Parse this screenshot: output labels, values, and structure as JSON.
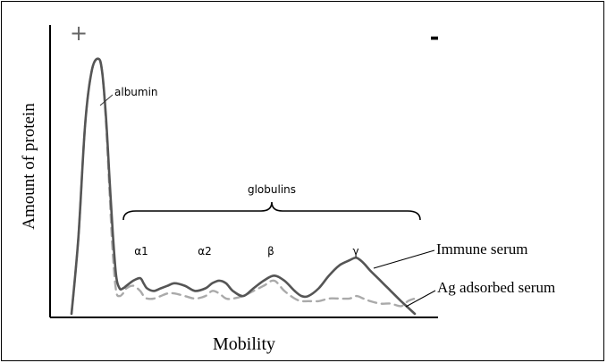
{
  "chart_data": {
    "type": "line",
    "title": "",
    "xlabel": "Mobility",
    "ylabel": "Amount of protein",
    "grid": false,
    "legend": "none",
    "x_range": [
      0,
      100
    ],
    "y_range": [
      0,
      100
    ],
    "polarity": {
      "positive": "+",
      "negative": "-"
    },
    "annotations": {
      "albumin": "albumin",
      "globulins": "globulins",
      "fractions": [
        "α1",
        "α2",
        "β",
        "γ"
      ]
    },
    "series": [
      {
        "name": "Immune serum",
        "color": "#555555",
        "style": "solid",
        "x": [
          0,
          2,
          4,
          6,
          8,
          9,
          10,
          11,
          12,
          13,
          14,
          15,
          16,
          18,
          20,
          21,
          22,
          24,
          26,
          28,
          30,
          33,
          36,
          39,
          41,
          43,
          45,
          47,
          50,
          53,
          56,
          59,
          62,
          65,
          67,
          69,
          72,
          75,
          78,
          81,
          83,
          85,
          87,
          90,
          93,
          96,
          100
        ],
        "y": [
          0,
          30,
          75,
          96,
          100,
          94,
          78,
          55,
          32,
          15,
          10,
          10,
          11,
          13,
          14,
          12,
          10,
          9,
          10,
          11,
          12,
          11,
          9,
          10,
          12,
          13,
          12,
          9,
          7,
          10,
          13,
          15,
          13,
          9,
          7,
          7,
          10,
          15,
          19,
          21,
          22,
          20,
          17,
          13,
          9,
          5,
          0
        ]
      },
      {
        "name": "Ag adsorbed serum",
        "color": "#aaaaaa",
        "style": "dashed",
        "x": [
          0,
          2,
          4,
          6,
          8,
          9,
          10,
          11,
          12,
          13,
          14,
          15,
          16,
          18,
          20,
          21,
          22,
          24,
          26,
          28,
          30,
          33,
          36,
          39,
          41,
          43,
          45,
          47,
          50,
          53,
          56,
          59,
          62,
          65,
          67,
          69,
          72,
          75,
          78,
          81,
          83,
          85,
          87,
          90,
          93,
          96,
          98,
          100
        ],
        "y": [
          0,
          30,
          75,
          96,
          100,
          94,
          76,
          50,
          24,
          9,
          7,
          8,
          10,
          11,
          9,
          7,
          6,
          6,
          7,
          8,
          8,
          7,
          6,
          7,
          9,
          8,
          6,
          6,
          7,
          9,
          11,
          13,
          9,
          6,
          5,
          5,
          5,
          6,
          6,
          6,
          7,
          6,
          5,
          4,
          4,
          3,
          5,
          6
        ]
      }
    ],
    "series_labels": [
      "Immune serum",
      "Ag adsorbed serum"
    ]
  }
}
